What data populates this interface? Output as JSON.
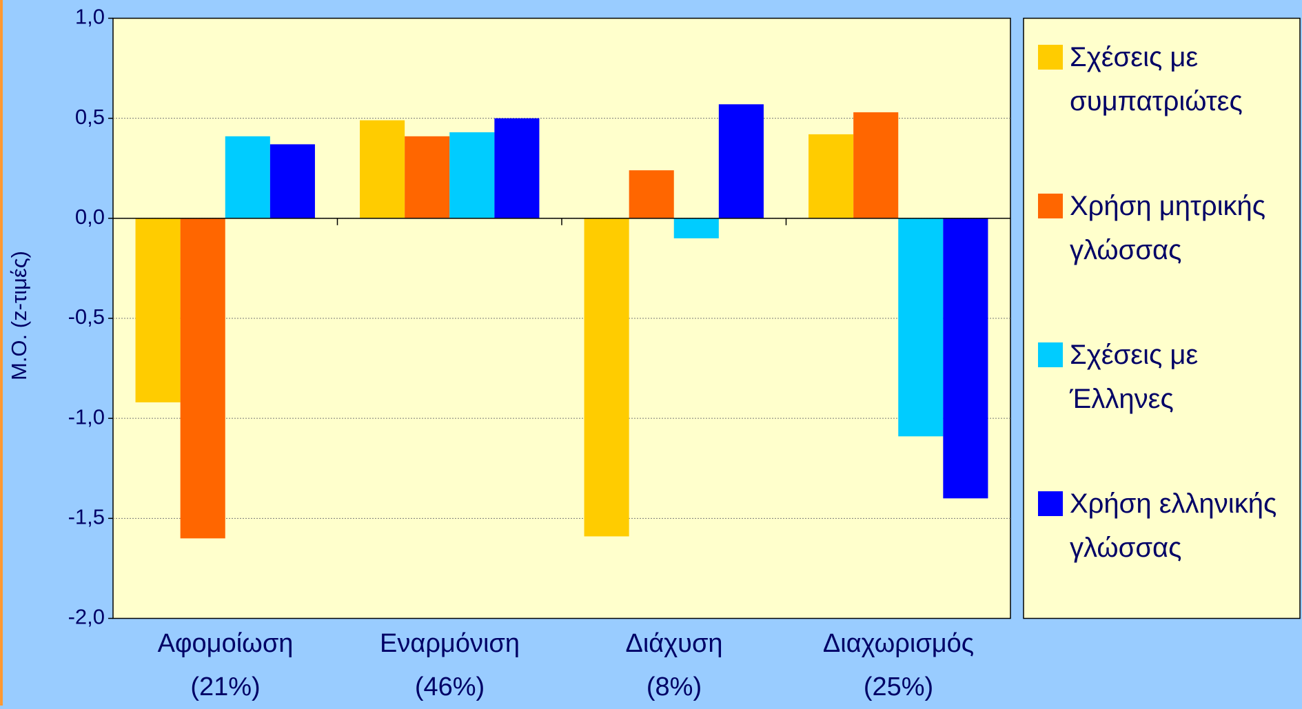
{
  "chart_data": {
    "type": "bar",
    "y_label": "Μ.Ο. (z-τιμές)",
    "categories": [
      "Αφομοίωση\n(21%)",
      "Εναρμόνιση\n(46%)",
      "Διάχυση\n(8%)",
      "Διαχωρισμός\n(25%)"
    ],
    "series": [
      {
        "name": "Σχέσεις με συμπατριώτες",
        "color": "#ffcc00",
        "values": [
          -0.92,
          0.49,
          -1.59,
          0.42
        ]
      },
      {
        "name": "Χρήση μητρικής γλώσσας",
        "color": "#ff6600",
        "values": [
          -1.6,
          0.41,
          0.24,
          0.53
        ]
      },
      {
        "name": "Σχέσεις με Έλληνες",
        "color": "#00ccff",
        "values": [
          0.41,
          0.43,
          -0.1,
          -1.09
        ]
      },
      {
        "name": "Χρήση ελληνικής γλώσσας",
        "color": "#0000ff",
        "values": [
          0.37,
          0.5,
          0.57,
          -1.4
        ]
      }
    ],
    "ylim": [
      -2,
      1
    ],
    "yticks": [
      {
        "value": 1,
        "label": "1,0"
      },
      {
        "value": 0.5,
        "label": "0,5"
      },
      {
        "value": 0,
        "label": "0,0"
      },
      {
        "value": -0.5,
        "label": "-0,5"
      },
      {
        "value": -1,
        "label": "-1,0"
      },
      {
        "value": -1.5,
        "label": "-1,5"
      },
      {
        "value": -2,
        "label": "-2,0"
      }
    ],
    "grid": true,
    "legend": "right"
  }
}
